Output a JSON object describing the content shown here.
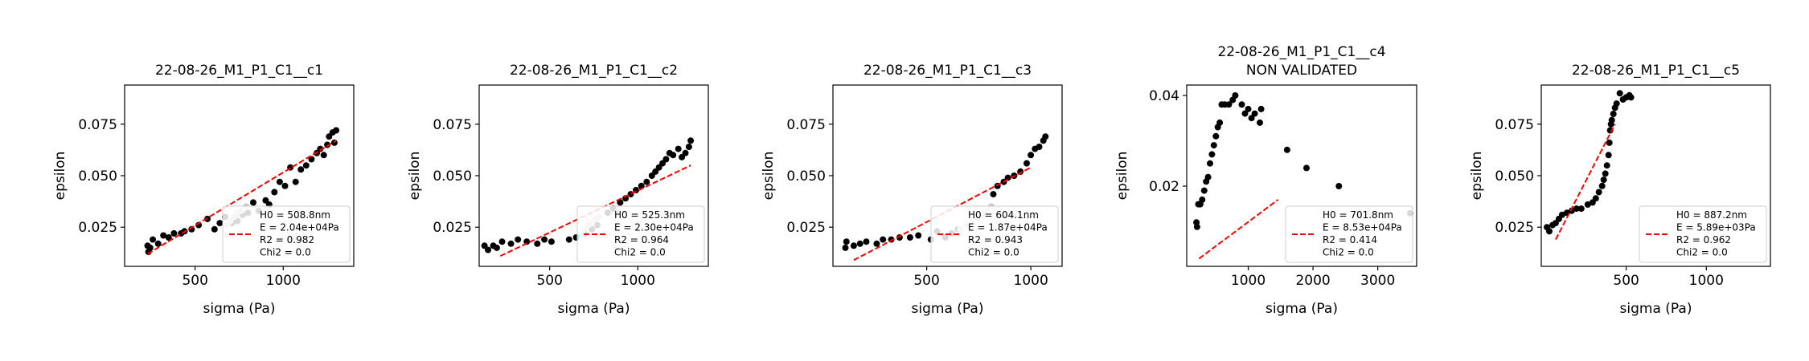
{
  "chart_data": [
    {
      "type": "scatter",
      "title": "22-08-26_M1_P1_C1__c1",
      "subtitle": "",
      "xlabel": "sigma (Pa)",
      "ylabel": "epsilon",
      "xlim": [
        100,
        1400
      ],
      "ylim": [
        0.006,
        0.094
      ],
      "xticks": [
        500,
        1000
      ],
      "yticks": [
        0.025,
        0.05,
        0.075
      ],
      "points": [
        [
          230,
          0.016
        ],
        [
          235,
          0.013
        ],
        [
          245,
          0.015
        ],
        [
          260,
          0.019
        ],
        [
          290,
          0.017
        ],
        [
          320,
          0.021
        ],
        [
          350,
          0.02
        ],
        [
          380,
          0.022
        ],
        [
          420,
          0.022
        ],
        [
          440,
          0.023
        ],
        [
          480,
          0.024
        ],
        [
          520,
          0.026
        ],
        [
          570,
          0.029
        ],
        [
          610,
          0.024
        ],
        [
          640,
          0.027
        ],
        [
          670,
          0.03
        ],
        [
          710,
          0.027
        ],
        [
          740,
          0.028
        ],
        [
          770,
          0.031
        ],
        [
          800,
          0.032
        ],
        [
          830,
          0.037
        ],
        [
          860,
          0.033
        ],
        [
          900,
          0.038
        ],
        [
          920,
          0.036
        ],
        [
          950,
          0.042
        ],
        [
          980,
          0.047
        ],
        [
          1010,
          0.045
        ],
        [
          1040,
          0.054
        ],
        [
          1070,
          0.047
        ],
        [
          1100,
          0.053
        ],
        [
          1130,
          0.055
        ],
        [
          1160,
          0.058
        ],
        [
          1190,
          0.061
        ],
        [
          1210,
          0.063
        ],
        [
          1230,
          0.06
        ],
        [
          1250,
          0.065
        ],
        [
          1260,
          0.069
        ],
        [
          1280,
          0.071
        ],
        [
          1300,
          0.072
        ],
        [
          1290,
          0.066
        ]
      ],
      "faded_points": [
        [
          680,
          0.026
        ],
        [
          700,
          0.028
        ],
        [
          720,
          0.03
        ],
        [
          740,
          0.032
        ],
        [
          760,
          0.033
        ],
        [
          790,
          0.035
        ]
      ],
      "fit_line": [
        [
          230,
          0.012
        ],
        [
          1300,
          0.067
        ]
      ],
      "legend_lines": [
        "H0 = 508.8nm",
        "E = 2.04e+04Pa",
        "R2 = 0.982",
        "Chi2 = 0.0"
      ],
      "legend_placement": "lower right"
    },
    {
      "type": "scatter",
      "title": "22-08-26_M1_P1_C1__c2",
      "subtitle": "",
      "xlabel": "sigma (Pa)",
      "ylabel": "epsilon",
      "xlim": [
        100,
        1400
      ],
      "ylim": [
        0.006,
        0.094
      ],
      "xticks": [
        500,
        1000
      ],
      "yticks": [
        0.025,
        0.05,
        0.075
      ],
      "points": [
        [
          130,
          0.016
        ],
        [
          150,
          0.014
        ],
        [
          180,
          0.016
        ],
        [
          200,
          0.015
        ],
        [
          230,
          0.018
        ],
        [
          280,
          0.017
        ],
        [
          320,
          0.019
        ],
        [
          370,
          0.018
        ],
        [
          430,
          0.017
        ],
        [
          470,
          0.019
        ],
        [
          510,
          0.018
        ],
        [
          610,
          0.019
        ],
        [
          650,
          0.02
        ],
        [
          700,
          0.022
        ],
        [
          740,
          0.024
        ],
        [
          770,
          0.026
        ],
        [
          830,
          0.032
        ],
        [
          860,
          0.034
        ],
        [
          900,
          0.037
        ],
        [
          930,
          0.039
        ],
        [
          960,
          0.041
        ],
        [
          990,
          0.043
        ],
        [
          1020,
          0.045
        ],
        [
          1050,
          0.047
        ],
        [
          1080,
          0.05
        ],
        [
          1100,
          0.052
        ],
        [
          1120,
          0.054
        ],
        [
          1140,
          0.056
        ],
        [
          1160,
          0.058
        ],
        [
          1180,
          0.061
        ],
        [
          1200,
          0.06
        ],
        [
          1230,
          0.063
        ],
        [
          1250,
          0.059
        ],
        [
          1270,
          0.061
        ],
        [
          1290,
          0.064
        ],
        [
          1300,
          0.067
        ]
      ],
      "faded_points": [
        [
          680,
          0.022
        ],
        [
          700,
          0.024
        ],
        [
          720,
          0.026
        ],
        [
          740,
          0.027
        ],
        [
          760,
          0.029
        ],
        [
          780,
          0.03
        ]
      ],
      "fit_line": [
        [
          220,
          0.011
        ],
        [
          1300,
          0.055
        ]
      ],
      "legend_lines": [
        "H0 = 525.3nm",
        "E = 2.30e+04Pa",
        "R2 = 0.964",
        "Chi2 = 0.0"
      ],
      "legend_placement": "lower right"
    },
    {
      "type": "scatter",
      "title": "22-08-26_M1_P1_C1__c3",
      "subtitle": "",
      "xlabel": "sigma (Pa)",
      "ylabel": "epsilon",
      "xlim": [
        50,
        1150
      ],
      "ylim": [
        0.006,
        0.094
      ],
      "xticks": [
        500,
        1000
      ],
      "yticks": [
        0.025,
        0.05,
        0.075
      ],
      "points": [
        [
          110,
          0.015
        ],
        [
          115,
          0.018
        ],
        [
          150,
          0.016
        ],
        [
          180,
          0.017
        ],
        [
          210,
          0.018
        ],
        [
          260,
          0.017
        ],
        [
          290,
          0.019
        ],
        [
          330,
          0.019
        ],
        [
          370,
          0.02
        ],
        [
          420,
          0.02
        ],
        [
          460,
          0.021
        ],
        [
          520,
          0.019
        ],
        [
          550,
          0.023
        ],
        [
          590,
          0.02
        ],
        [
          620,
          0.022
        ],
        [
          650,
          0.024
        ],
        [
          820,
          0.041
        ],
        [
          840,
          0.045
        ],
        [
          870,
          0.047
        ],
        [
          890,
          0.049
        ],
        [
          920,
          0.05
        ],
        [
          950,
          0.052
        ],
        [
          980,
          0.056
        ],
        [
          1000,
          0.06
        ],
        [
          1020,
          0.063
        ],
        [
          1040,
          0.064
        ],
        [
          1060,
          0.067
        ],
        [
          1070,
          0.069
        ]
      ],
      "faded_points": [
        [
          660,
          0.024
        ],
        [
          690,
          0.026
        ],
        [
          720,
          0.028
        ],
        [
          740,
          0.029
        ],
        [
          770,
          0.031
        ],
        [
          790,
          0.033
        ],
        [
          810,
          0.035
        ]
      ],
      "fit_line": [
        [
          150,
          0.009
        ],
        [
          1000,
          0.054
        ]
      ],
      "legend_lines": [
        "H0 = 604.1nm",
        "E = 1.87e+04Pa",
        "R2 = 0.943",
        "Chi2 = 0.0"
      ],
      "legend_placement": "lower right"
    },
    {
      "type": "scatter",
      "title": "22-08-26_M1_P1_C1__c4",
      "subtitle": "NON VALIDATED",
      "xlabel": "sigma (Pa)",
      "ylabel": "epsilon",
      "xlim": [
        50,
        3600
      ],
      "ylim": [
        0.0023,
        0.0423
      ],
      "xticks": [
        1000,
        2000,
        3000
      ],
      "yticks": [
        0.02,
        0.04
      ],
      "points": [
        [
          200,
          0.012
        ],
        [
          210,
          0.011
        ],
        [
          230,
          0.016
        ],
        [
          260,
          0.016
        ],
        [
          290,
          0.017
        ],
        [
          320,
          0.019
        ],
        [
          350,
          0.021
        ],
        [
          380,
          0.022
        ],
        [
          410,
          0.025
        ],
        [
          440,
          0.027
        ],
        [
          470,
          0.029
        ],
        [
          500,
          0.031
        ],
        [
          530,
          0.033
        ],
        [
          560,
          0.034
        ],
        [
          590,
          0.038
        ],
        [
          640,
          0.038
        ],
        [
          700,
          0.038
        ],
        [
          760,
          0.039
        ],
        [
          800,
          0.04
        ],
        [
          900,
          0.038
        ],
        [
          950,
          0.036
        ],
        [
          1000,
          0.037
        ],
        [
          1050,
          0.035
        ],
        [
          1100,
          0.036
        ],
        [
          1180,
          0.034
        ],
        [
          1200,
          0.037
        ],
        [
          1600,
          0.028
        ],
        [
          1900,
          0.024
        ],
        [
          2400,
          0.02
        ],
        [
          3500,
          0.014
        ]
      ],
      "faded_points": [],
      "fit_line": [
        [
          240,
          0.004
        ],
        [
          1460,
          0.017
        ]
      ],
      "legend_lines": [
        "H0 = 701.8nm",
        "E = 8.53e+04Pa",
        "R2 = 0.414",
        "Chi2 = 0.0"
      ],
      "legend_placement": "lower right"
    },
    {
      "type": "scatter",
      "title": "22-08-26_M1_P1_C1__c5",
      "subtitle": "",
      "xlabel": "sigma (Pa)",
      "ylabel": "epsilon",
      "xlim": [
        -30,
        1400
      ],
      "ylim": [
        0.006,
        0.094
      ],
      "xticks": [
        500,
        1000
      ],
      "yticks": [
        0.025,
        0.05,
        0.075
      ],
      "points": [
        [
          5,
          0.025
        ],
        [
          20,
          0.023
        ],
        [
          40,
          0.026
        ],
        [
          60,
          0.027
        ],
        [
          80,
          0.029
        ],
        [
          100,
          0.031
        ],
        [
          130,
          0.032
        ],
        [
          160,
          0.033
        ],
        [
          190,
          0.034
        ],
        [
          220,
          0.034
        ],
        [
          260,
          0.036
        ],
        [
          290,
          0.037
        ],
        [
          310,
          0.039
        ],
        [
          330,
          0.042
        ],
        [
          350,
          0.045
        ],
        [
          360,
          0.048
        ],
        [
          370,
          0.051
        ],
        [
          380,
          0.055
        ],
        [
          390,
          0.06
        ],
        [
          395,
          0.066
        ],
        [
          400,
          0.072
        ],
        [
          405,
          0.075
        ],
        [
          410,
          0.077
        ],
        [
          420,
          0.08
        ],
        [
          430,
          0.083
        ],
        [
          440,
          0.085
        ],
        [
          460,
          0.09
        ],
        [
          480,
          0.087
        ],
        [
          500,
          0.088
        ],
        [
          520,
          0.089
        ],
        [
          530,
          0.088
        ]
      ],
      "faded_points": [],
      "fit_line": [
        [
          60,
          0.019
        ],
        [
          430,
          0.075
        ]
      ],
      "legend_lines": [
        "H0 = 887.2nm",
        "E = 5.89e+03Pa",
        "R2 = 0.962",
        "Chi2 = 0.0"
      ],
      "legend_placement": "lower right"
    }
  ],
  "colors": {
    "point": "#000000",
    "faded_point": "#c8c8c8",
    "fit_line": "#ff0000",
    "axes": "#000000",
    "legend_border": "#cccccc"
  }
}
